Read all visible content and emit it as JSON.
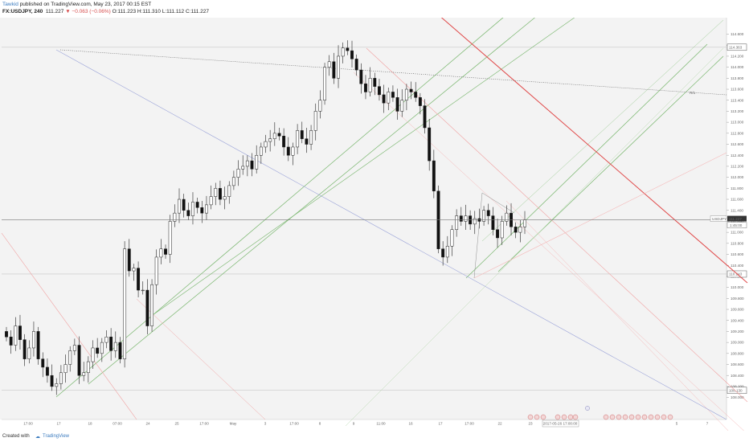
{
  "header": {
    "author": "Tawkid",
    "published": " published on TradingView.com, May 23, 2017 00:15 EST",
    "symbol_line": "FX:USDJPY, 240",
    "last": "111.227",
    "change": "▼ −0.063 (−0.06%)",
    "ohlc": "O:111.223 H:111.310 L:111.112 C:111.227"
  },
  "footer": {
    "created_with": "Created with",
    "brand": "TradingView"
  },
  "chart_data": {
    "type": "candlestick",
    "symbol": "USDJPY",
    "timeframe": "240",
    "ylim": [
      107.6,
      114.9
    ],
    "y_ticks": [
      108.0,
      108.2,
      108.4,
      108.6,
      108.8,
      109.0,
      109.2,
      109.4,
      109.6,
      109.8,
      110.0,
      110.2,
      110.4,
      110.6,
      110.8,
      111.0,
      111.2,
      111.4,
      111.6,
      111.8,
      112.0,
      112.2,
      112.4,
      112.6,
      112.8,
      113.0,
      113.2,
      113.4,
      113.6,
      113.8,
      114.0,
      114.2,
      114.4,
      114.6
    ],
    "marked_levels": [
      {
        "label": "114.363",
        "value": 114.363
      },
      {
        "label": "110.243",
        "value": 110.243
      },
      {
        "label": "108.130",
        "value": 108.13
      }
    ],
    "current_price": {
      "symbol": "USDJPY",
      "value": "111.227",
      "countdown": "1:45:00",
      "level": 111.227
    },
    "x_ticks": [
      "17:00",
      "17",
      "18",
      "07:00",
      "24",
      "25",
      "17:00",
      "May",
      "3",
      "17:00",
      "8",
      "9",
      "11:00",
      "16",
      "17",
      "17:00",
      "22",
      "23",
      "2017-05-26 17:00:00",
      "5",
      "7"
    ],
    "annotation": "R/1",
    "closes": [
      109.1,
      108.95,
      109.3,
      109.05,
      108.7,
      108.9,
      109.2,
      108.7,
      108.55,
      108.4,
      108.2,
      108.25,
      108.45,
      108.6,
      108.85,
      108.95,
      108.4,
      108.45,
      108.65,
      108.9,
      108.8,
      109.0,
      109.1,
      108.85,
      109.0,
      108.7,
      110.7,
      110.3,
      110.35,
      109.95,
      109.95,
      109.3,
      110.05,
      110.55,
      110.7,
      110.6,
      111.2,
      111.35,
      111.6,
      111.4,
      111.3,
      111.55,
      111.45,
      111.35,
      111.5,
      111.65,
      111.8,
      111.6,
      111.65,
      111.85,
      112.0,
      112.15,
      112.2,
      112.3,
      112.15,
      112.4,
      112.55,
      112.65,
      112.7,
      112.8,
      112.75,
      112.55,
      112.4,
      112.55,
      112.85,
      112.7,
      112.6,
      112.85,
      113.2,
      113.4,
      114.0,
      114.1,
      113.8,
      114.2,
      114.35,
      114.3,
      114.15,
      113.95,
      113.7,
      113.55,
      113.8,
      113.65,
      113.5,
      113.35,
      113.55,
      113.45,
      113.2,
      113.4,
      113.6,
      113.55,
      113.45,
      113.3,
      112.9,
      112.3,
      111.75,
      110.7,
      110.55,
      110.75,
      111.05,
      111.3,
      111.2,
      111.3,
      111.15,
      111.25,
      111.2,
      111.4,
      111.3,
      111.05,
      110.9,
      111.2,
      111.35,
      111.1,
      111.0,
      111.1,
      111.227
    ]
  }
}
